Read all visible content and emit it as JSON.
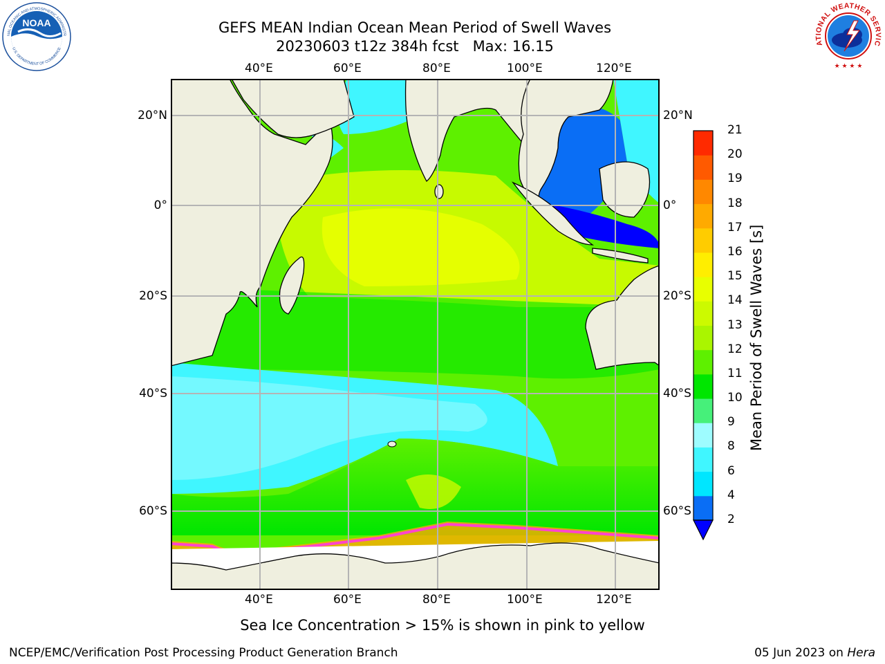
{
  "title": {
    "line1": "GEFS MEAN Indian Ocean Mean Period of Swell Waves",
    "line2": "20230603 t12z 384h fcst   Max: 16.15"
  },
  "map": {
    "lon_labels": [
      "40°E",
      "60°E",
      "80°E",
      "100°E",
      "120°E"
    ],
    "lat_labels": [
      "20°N",
      "0°",
      "20°S",
      "40°S",
      "60°S"
    ],
    "lon_range": [
      20,
      130
    ],
    "lat_range": [
      -75,
      28
    ]
  },
  "colorbar": {
    "label": "Mean Period of Swell Waves [s]",
    "ticks": [
      "2",
      "4",
      "6",
      "8",
      "9",
      "10",
      "11",
      "12",
      "13",
      "14",
      "15",
      "16",
      "17",
      "18",
      "19",
      "20",
      "21"
    ],
    "colors": [
      "#0a6ef5",
      "#00e6ff",
      "#40f6ff",
      "#9efcff",
      "#46f07a",
      "#00e600",
      "#5ef000",
      "#aaf500",
      "#ccfa00",
      "#e8ff00",
      "#ffee00",
      "#ffcc00",
      "#ffaa00",
      "#ff8800",
      "#ff5a00",
      "#ff2a00"
    ],
    "extend_color": "#0000ff"
  },
  "caption": "Sea Ice Concentration > 15% is shown in pink to yellow",
  "footer": {
    "left": "NCEP/EMC/Verification Post Processing Product Generation Branch",
    "right_date": "05 Jun 2023 on ",
    "right_host": "Hera"
  },
  "logos": {
    "noaa": "NOAA",
    "noaa_ring_top": "NATIONAL OCEANIC AND ATMOSPHERIC ADMINISTRATION",
    "noaa_ring_bottom": "U.S. DEPARTMENT OF COMMERCE",
    "nws_ring": "NATIONAL WEATHER SERVICE"
  },
  "style": {
    "land": "#efefdf",
    "ice": "#ffffff",
    "grid": "#b4b4b4",
    "sea_ice_edge": "#ff44cc"
  }
}
